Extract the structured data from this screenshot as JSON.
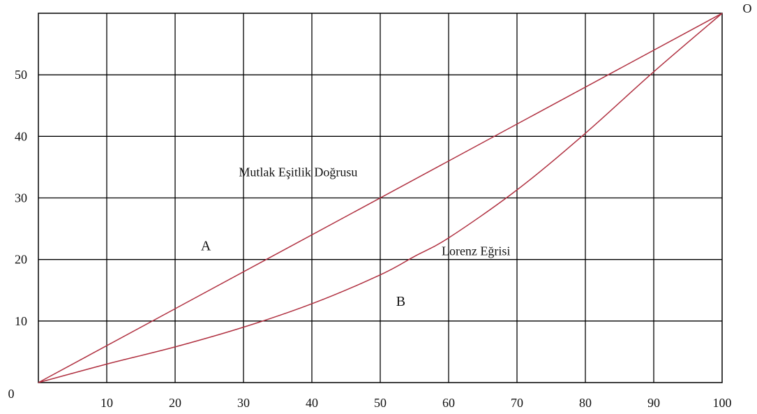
{
  "colors": {
    "grid": "#000000",
    "curve": "#b03040",
    "text": "#111111"
  },
  "chart_data": {
    "type": "line",
    "x_ticks": [
      "10",
      "20",
      "30",
      "40",
      "50",
      "60",
      "70",
      "80",
      "90",
      "100"
    ],
    "y_ticks": [
      "10",
      "20",
      "30",
      "40",
      "50"
    ],
    "origin_label": "0",
    "corner_label": "O",
    "xlim": [
      0,
      100
    ],
    "ylim": [
      0,
      60
    ],
    "grid": true,
    "series": [
      {
        "name": "Mutlak Eşitlik Doğrusu",
        "x": [
          0,
          100
        ],
        "y": [
          0,
          60
        ]
      },
      {
        "name": "Lorenz Eğrisi",
        "x": [
          0,
          10,
          20,
          30,
          40,
          50,
          55,
          60,
          70,
          80,
          90,
          100
        ],
        "y": [
          0,
          3,
          5.8,
          9,
          12.8,
          17.5,
          20.5,
          23.5,
          31.3,
          40.5,
          50.5,
          60
        ]
      }
    ],
    "annotations": [
      {
        "text": "Mutlak Eşitlik Doğrusu",
        "x": 38,
        "y": 33.5
      },
      {
        "text": "Lorenz Eğrisi",
        "x": 64,
        "y": 20.7
      },
      {
        "text": "A",
        "x": 24.5,
        "y": 21.5
      },
      {
        "text": "B",
        "x": 53,
        "y": 12.5
      }
    ]
  }
}
